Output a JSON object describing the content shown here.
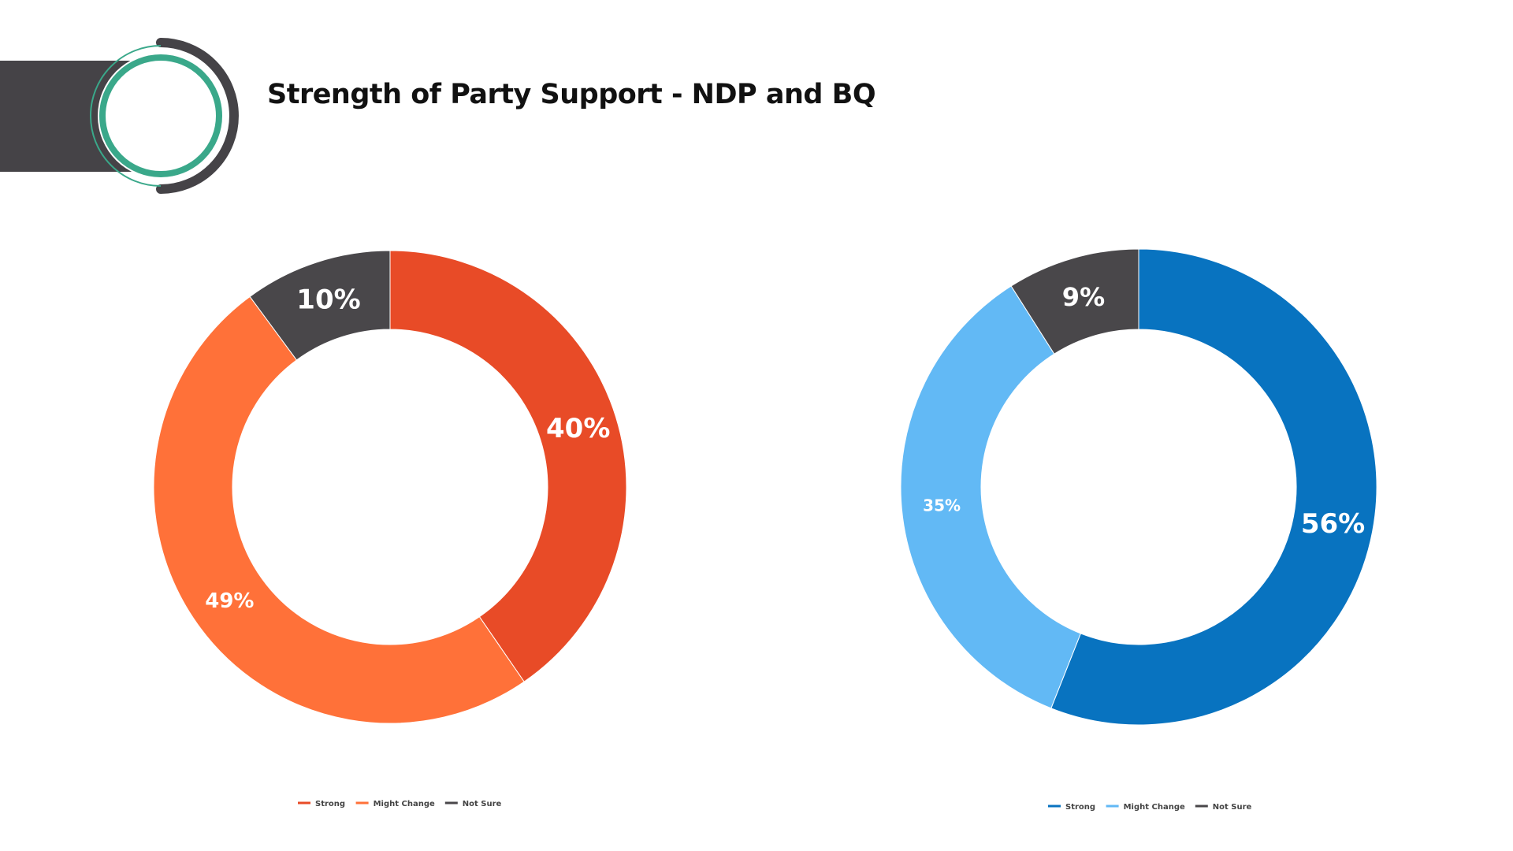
{
  "page": {
    "title": "Strength of Party Support - NDP and BQ"
  },
  "colors": {
    "header_bar": "#454347",
    "logo_green": "#3aa88a",
    "logo_dark": "#454347"
  },
  "chart_data": [
    {
      "type": "pie",
      "subtype": "donut",
      "name": "NDP",
      "title": "",
      "categories": [
        "Strong",
        "Might Change",
        "Not Sure"
      ],
      "values": [
        40,
        49,
        10
      ],
      "labels": [
        "40%",
        "49%",
        "10%"
      ],
      "colors": [
        "#e84b27",
        "#ff7139",
        "#49474a"
      ],
      "legend_position": "bottom",
      "legend": [
        "Strong",
        "Might Change",
        "Not Sure"
      ]
    },
    {
      "type": "pie",
      "subtype": "donut",
      "name": "BQ",
      "title": "",
      "categories": [
        "Strong",
        "Might Change",
        "Not Sure"
      ],
      "values": [
        56,
        35,
        9
      ],
      "labels": [
        "56%",
        "35%",
        "9%"
      ],
      "colors": [
        "#0873c0",
        "#62b9f5",
        "#49474a"
      ],
      "legend_position": "bottom",
      "legend": [
        "Strong",
        "Might Change",
        "Not Sure"
      ]
    }
  ]
}
